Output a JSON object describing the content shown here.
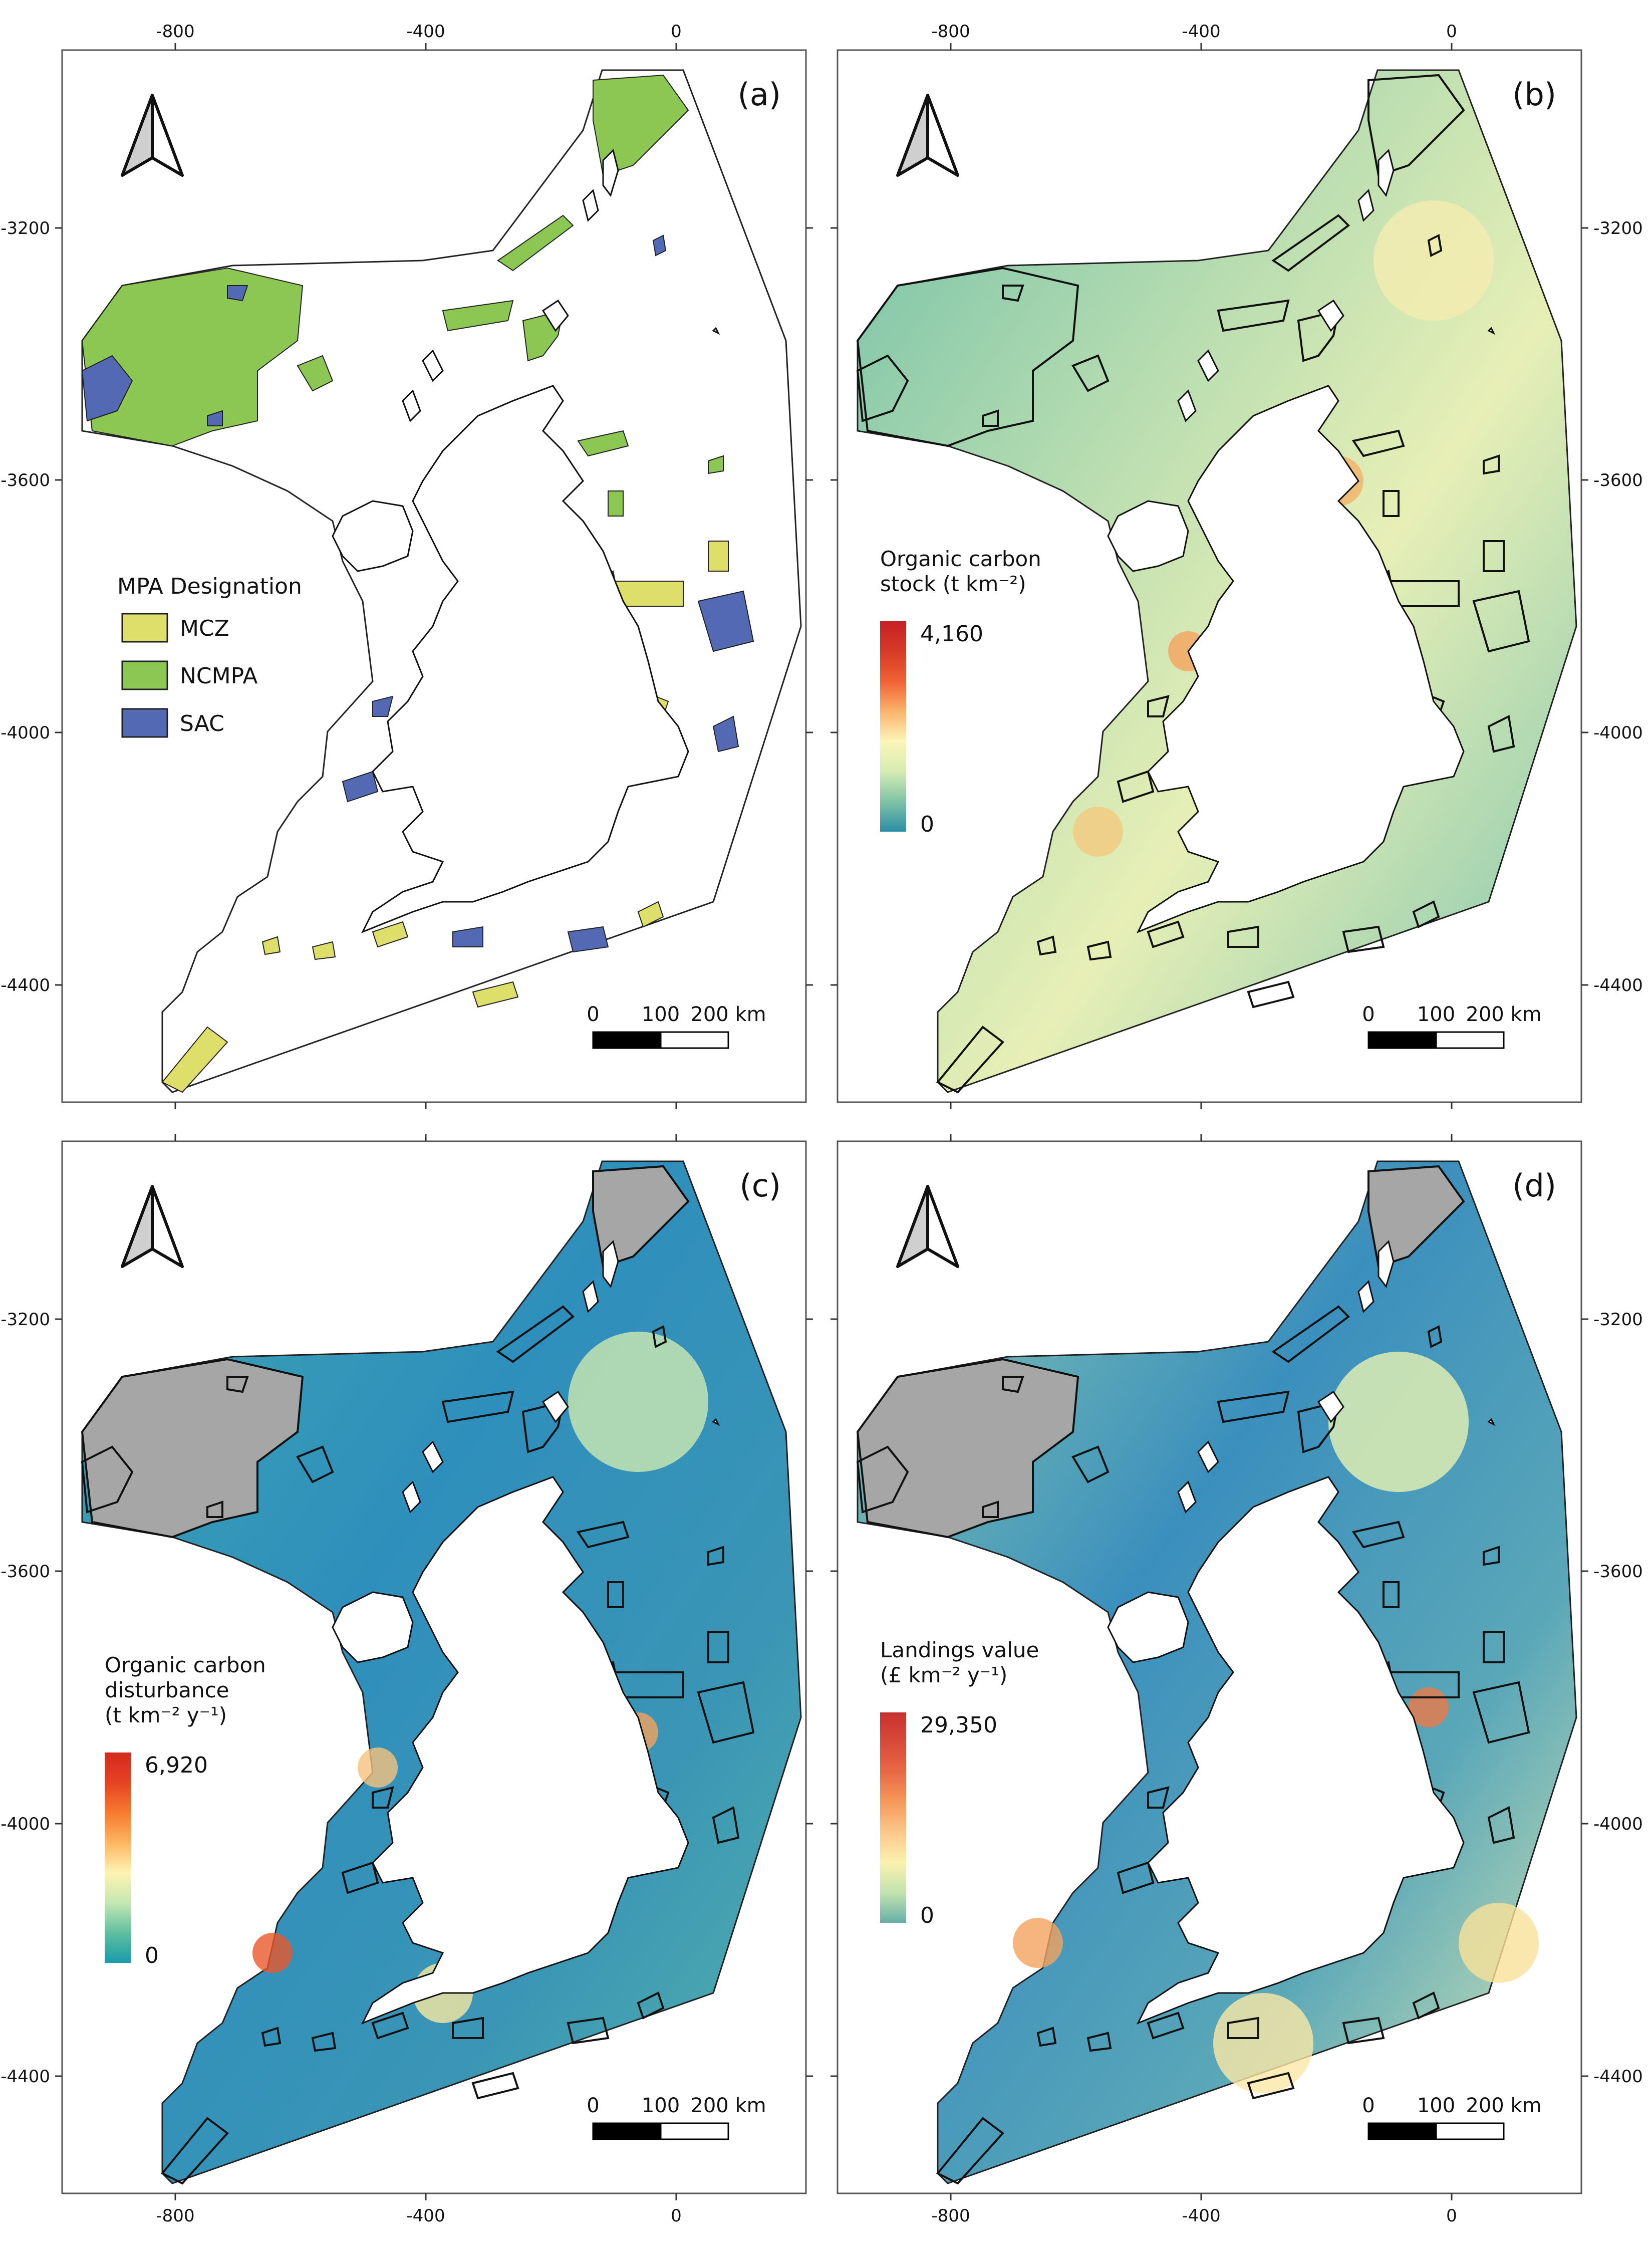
{
  "colors": {
    "mcz": "#dede6a",
    "ncmpa": "#8cc653",
    "sac": "#5469b4",
    "no_data": "#a6a6a6",
    "outline": "#000000",
    "land": "#ffffff",
    "ramp_stock": [
      "#2b8ea5",
      "#7fc3a6",
      "#d6ecb2",
      "#fbf5b8",
      "#fbb36d",
      "#f06235",
      "#d63a26",
      "#c82026"
    ],
    "ramp_disturbance": [
      "#1b9aaa",
      "#5fbf9f",
      "#c5e8b3",
      "#fff3b2",
      "#fdb663",
      "#f67a2f",
      "#e64324",
      "#d42a1f"
    ],
    "ramp_landings": [
      "#67b0a8",
      "#c2e2b0",
      "#fbf2ae",
      "#fcc88a",
      "#f69a5c",
      "#e96a45",
      "#d94a3a",
      "#c8322e"
    ]
  },
  "axes": {
    "x_ticks": [
      "-800",
      "-400",
      "0"
    ],
    "y_ticks_top": [
      "-3200",
      "-3600",
      "-4000",
      "-4400"
    ],
    "y_ticks_bottom": [
      "-3200",
      "-3600",
      "-4000",
      "-4400"
    ]
  },
  "panels": [
    {
      "id": "a",
      "label": "(a)",
      "map_type": "mpa-designation",
      "legend": {
        "title": "MPA Designation",
        "items": [
          {
            "label": "MCZ",
            "color_key": "mcz"
          },
          {
            "label": "NCMPA",
            "color_key": "ncmpa"
          },
          {
            "label": "SAC",
            "color_key": "sac"
          }
        ]
      },
      "scalebar": {
        "labels": [
          "0",
          "100",
          "200 km"
        ]
      }
    },
    {
      "id": "b",
      "label": "(b)",
      "map_type": "organic-carbon-stock",
      "colorbar": {
        "title_line1": "Organic carbon",
        "title_line2": "stock (t km⁻²)",
        "title_line3": "",
        "max": "4,160",
        "min": "0",
        "ramp": "ramp_stock"
      },
      "scalebar": {
        "labels": [
          "0",
          "100",
          "200 km"
        ]
      }
    },
    {
      "id": "c",
      "label": "(c)",
      "map_type": "organic-carbon-disturbance",
      "colorbar": {
        "title_line1": "Organic carbon",
        "title_line2": "disturbance",
        "title_line3": "(t km⁻² y⁻¹)",
        "max": "6,920",
        "min": "0",
        "ramp": "ramp_disturbance"
      },
      "scalebar": {
        "labels": [
          "0",
          "100",
          "200 km"
        ]
      }
    },
    {
      "id": "d",
      "label": "(d)",
      "map_type": "landings-value",
      "colorbar": {
        "title_line1": "Landings value",
        "title_line2": "(£ km⁻² y⁻¹)",
        "title_line3": "",
        "max": "29,350",
        "min": "0",
        "ramp": "ramp_landings"
      },
      "scalebar": {
        "labels": [
          "0",
          "100",
          "200 km"
        ]
      }
    }
  ]
}
